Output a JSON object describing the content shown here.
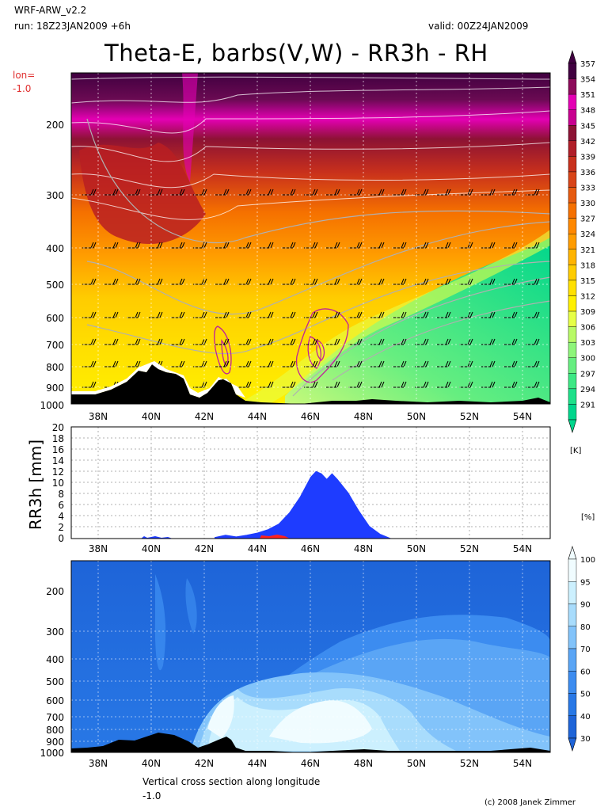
{
  "header": {
    "model": "WRF-ARW_v2.2",
    "run": "run: 18Z23JAN2009 +6h",
    "valid": "valid: 00Z24JAN2009",
    "title": "Theta-E, barbs(V,W) - RR3h - RH",
    "lon_label": "lon=",
    "lon_value": "-1.0"
  },
  "footer": {
    "desc": "Vertical cross section along longitude",
    "desc_value": "-1.0",
    "credit": "(c) 2008 Janek Zimmer"
  },
  "chart_data": [
    {
      "type": "heatmap",
      "name": "theta-e",
      "x_ticks": [
        "38N",
        "40N",
        "42N",
        "44N",
        "46N",
        "48N",
        "50N",
        "52N",
        "54N"
      ],
      "x_range": [
        37,
        55
      ],
      "y_ticks": [
        "200",
        "300",
        "400",
        "500",
        "600",
        "700",
        "800",
        "900",
        "1000"
      ],
      "y_range_hPa": [
        150,
        1000
      ],
      "colorbar": {
        "unit": "[K]",
        "labels": [
          "291",
          "294",
          "297",
          "300",
          "303",
          "306",
          "309",
          "312",
          "315",
          "318",
          "321",
          "324",
          "327",
          "330",
          "333",
          "336",
          "339",
          "342",
          "345",
          "348",
          "351",
          "354",
          "357"
        ],
        "colors": [
          "#00d68c",
          "#1ee08a",
          "#3ce884",
          "#66ee80",
          "#8ef57a",
          "#b8fa66",
          "#e6ff46",
          "#fff000",
          "#ffe000",
          "#ffcc00",
          "#ffb400",
          "#ff9c00",
          "#ff8800",
          "#f57000",
          "#e65a10",
          "#d84418",
          "#c8301c",
          "#b01e28",
          "#8c1234",
          "#c80090",
          "#e400b4",
          "#8c0a5a",
          "#400040"
        ]
      }
    },
    {
      "type": "area",
      "name": "precipitation",
      "ylabel": "RR3h [mm]",
      "y_ticks": [
        "0",
        "2",
        "4",
        "6",
        "8",
        "10",
        "12",
        "14",
        "16",
        "18",
        "20"
      ],
      "ylim": [
        0,
        20
      ],
      "x_range": [
        37,
        55
      ],
      "x": [
        42.4,
        42.8,
        43.2,
        43.6,
        44.0,
        44.4,
        44.8,
        45.2,
        45.6,
        46.0,
        46.2,
        46.4,
        46.6,
        46.8,
        47.0,
        47.4,
        47.8,
        48.2,
        48.6,
        49.0
      ],
      "values": [
        0.2,
        0.6,
        0.3,
        0.6,
        1.0,
        1.6,
        2.6,
        4.6,
        7.4,
        11.0,
        12.0,
        11.6,
        10.6,
        11.6,
        10.6,
        8.2,
        5.0,
        2.2,
        0.8,
        0.0
      ],
      "color": "#1e3cff",
      "secondary_color": "#ff2020"
    },
    {
      "type": "heatmap",
      "name": "relative-humidity",
      "unit": "[%]",
      "x_ticks": [
        "38N",
        "40N",
        "42N",
        "44N",
        "46N",
        "48N",
        "50N",
        "52N",
        "54N"
      ],
      "y_ticks": [
        "200",
        "300",
        "400",
        "500",
        "600",
        "700",
        "800",
        "900",
        "1000"
      ],
      "colorbar": {
        "labels": [
          "30",
          "40",
          "50",
          "60",
          "70",
          "80",
          "90",
          "95",
          "100"
        ],
        "colors": [
          "#1e64d8",
          "#2878e6",
          "#3c8cf0",
          "#5aa5f5",
          "#82c3fa",
          "#a8dcfc",
          "#ccf0fe",
          "#f0fcff"
        ]
      }
    }
  ]
}
